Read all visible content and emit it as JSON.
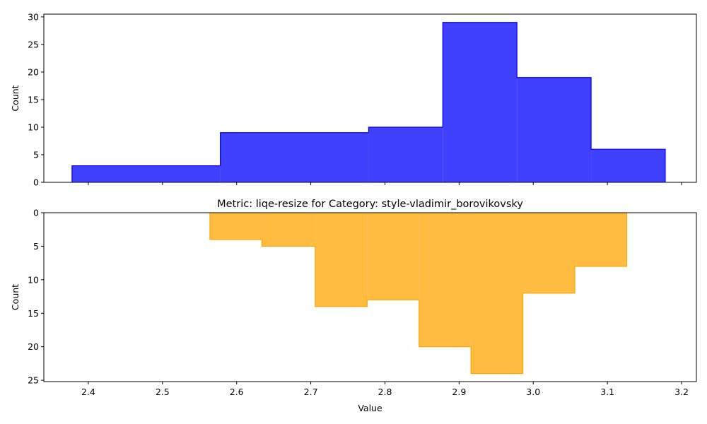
{
  "chart_data": [
    {
      "type": "histogram",
      "title": "",
      "xlabel": "",
      "ylabel": "Count",
      "bin_edges": [
        2.378,
        2.578,
        2.778,
        2.878,
        2.978,
        3.078,
        3.178
      ],
      "counts": [
        3,
        9,
        10,
        29,
        19,
        6
      ],
      "ylim": [
        0,
        30.5
      ],
      "yticks": [
        0,
        5,
        10,
        15,
        20,
        25,
        30
      ],
      "xlim": [
        2.34,
        3.22
      ],
      "xticks": [
        2.4,
        2.5,
        2.6,
        2.7,
        2.8,
        2.9,
        3.0,
        3.1,
        3.2
      ],
      "x_tick_labels_visible": false,
      "y_inverted": false,
      "color": "#0000ff",
      "fill_opacity": 0.75,
      "grid": false
    },
    {
      "type": "histogram",
      "title": "Metric: liqe-resize for Category: style-vladimir_borovikovsky",
      "xlabel": "Value",
      "ylabel": "Count",
      "bin_edges": [
        2.564,
        2.634,
        2.706,
        2.776,
        2.846,
        2.916,
        2.986,
        3.056,
        3.126
      ],
      "counts": [
        4,
        5,
        14,
        13,
        20,
        24,
        12,
        8
      ],
      "ylim": [
        0,
        25.2
      ],
      "yticks": [
        0,
        5,
        10,
        15,
        20,
        25
      ],
      "xlim": [
        2.34,
        3.22
      ],
      "xticks": [
        2.4,
        2.5,
        2.6,
        2.7,
        2.8,
        2.9,
        3.0,
        3.1,
        3.2
      ],
      "xtick_labels": [
        "2.4",
        "2.5",
        "2.6",
        "2.7",
        "2.8",
        "2.9",
        "3.0",
        "3.1",
        "3.2"
      ],
      "x_tick_labels_visible": true,
      "y_inverted": true,
      "color": "#ffa500",
      "fill_opacity": 0.75,
      "grid": false
    }
  ]
}
